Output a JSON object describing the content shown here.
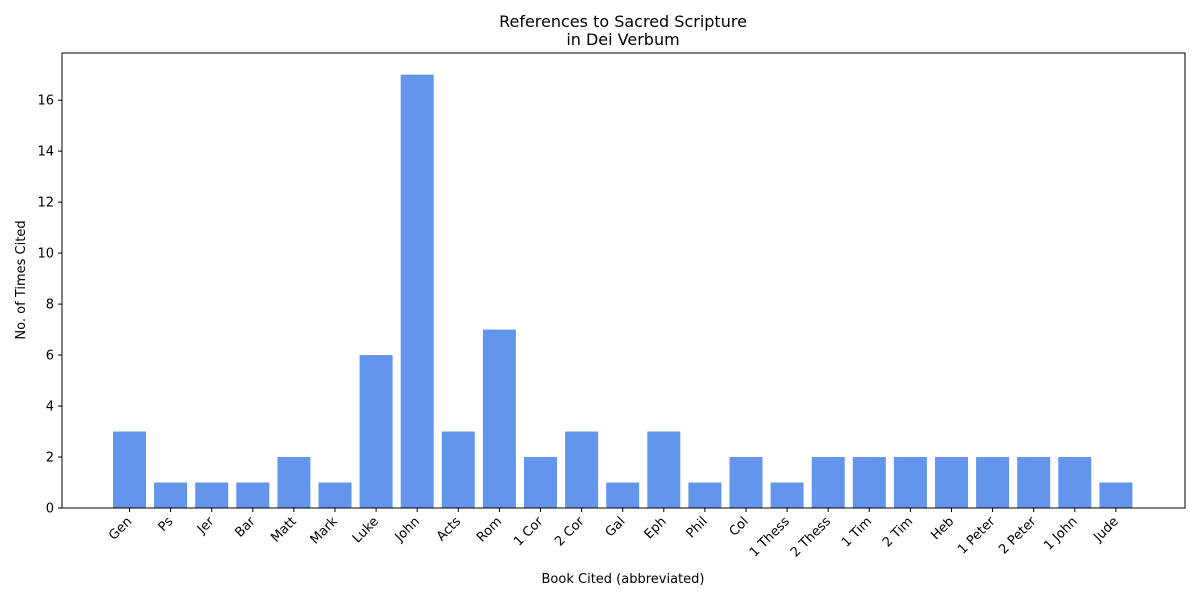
{
  "chart_data": {
    "type": "bar",
    "title": "References to Sacred Scripture",
    "subtitle": "in Dei Verbum",
    "xlabel": "Book Cited (abbreviated)",
    "ylabel": "No. of Times Cited",
    "categories": [
      "Gen",
      "Ps",
      "Jer",
      "Bar",
      "Matt",
      "Mark",
      "Luke",
      "John",
      "Acts",
      "Rom",
      "1 Cor",
      "2 Cor",
      "Gal",
      "Eph",
      "Phil",
      "Col",
      "1 Thess",
      "2 Thess",
      "1 Tim",
      "2 Tim",
      "Heb",
      "1 Peter",
      "2 Peter",
      "1 John",
      "Jude"
    ],
    "values": [
      3,
      1,
      1,
      1,
      2,
      1,
      6,
      17,
      3,
      7,
      2,
      3,
      1,
      3,
      1,
      2,
      1,
      2,
      2,
      2,
      2,
      2,
      2,
      2,
      1
    ],
    "ylim": [
      0,
      17.85
    ],
    "yticks": [
      0,
      2,
      4,
      6,
      8,
      10,
      12,
      14,
      16
    ],
    "bar_color": "#6495ed",
    "grid": false,
    "legend": "none"
  }
}
